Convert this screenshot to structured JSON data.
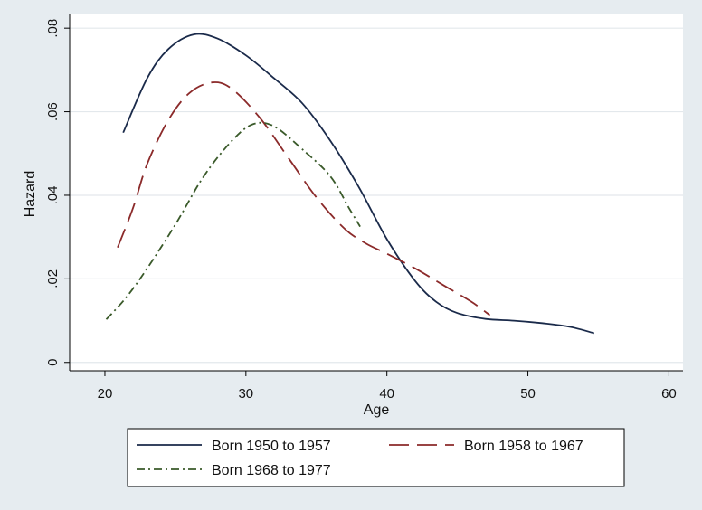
{
  "chart_data": {
    "type": "line",
    "xlabel": "Age",
    "ylabel": "Hazard",
    "xlim": [
      17.5,
      61
    ],
    "ylim": [
      -0.002,
      0.0835
    ],
    "x_ticks": [
      20,
      30,
      40,
      50,
      60
    ],
    "x_tick_labels": [
      "20",
      "30",
      "40",
      "50",
      "60"
    ],
    "y_ticks": [
      0,
      0.02,
      0.04,
      0.06,
      0.08
    ],
    "y_tick_labels": [
      "0",
      ".02",
      ".04",
      ".06",
      ".08"
    ],
    "grid": true,
    "legend": "bottom",
    "series": [
      {
        "name": "Born 1950 to 1957",
        "color": "#1a2a4a",
        "dash": "solid",
        "points": [
          [
            21.3,
            0.055
          ],
          [
            23,
            0.068
          ],
          [
            24.5,
            0.075
          ],
          [
            26.3,
            0.0785
          ],
          [
            28,
            0.0775
          ],
          [
            30,
            0.0735
          ],
          [
            32,
            0.068
          ],
          [
            34,
            0.062
          ],
          [
            36,
            0.053
          ],
          [
            38,
            0.042
          ],
          [
            40,
            0.0295
          ],
          [
            42,
            0.0195
          ],
          [
            43.5,
            0.0145
          ],
          [
            45,
            0.0118
          ],
          [
            47,
            0.0104
          ],
          [
            49,
            0.01
          ],
          [
            51,
            0.0094
          ],
          [
            53,
            0.0085
          ],
          [
            54.7,
            0.007
          ]
        ]
      },
      {
        "name": "Born 1958 to 1967",
        "color": "#8b2a2a",
        "dash": "longdash",
        "points": [
          [
            20.9,
            0.0275
          ],
          [
            22,
            0.037
          ],
          [
            23,
            0.0475
          ],
          [
            24.5,
            0.058
          ],
          [
            26,
            0.0645
          ],
          [
            27.6,
            0.067
          ],
          [
            29,
            0.0655
          ],
          [
            31,
            0.0585
          ],
          [
            33,
            0.049
          ],
          [
            35,
            0.0395
          ],
          [
            37,
            0.032
          ],
          [
            38.5,
            0.0285
          ],
          [
            40,
            0.026
          ],
          [
            42,
            0.0225
          ],
          [
            44,
            0.0185
          ],
          [
            46,
            0.0145
          ],
          [
            47.3,
            0.0113
          ]
        ]
      },
      {
        "name": "Born 1968 to 1977",
        "color": "#3a5a2a",
        "dash": "dashdot",
        "points": [
          [
            20.1,
            0.0103
          ],
          [
            21.5,
            0.0155
          ],
          [
            23,
            0.0225
          ],
          [
            25,
            0.033
          ],
          [
            27,
            0.0445
          ],
          [
            29,
            0.053
          ],
          [
            30.5,
            0.057
          ],
          [
            32,
            0.0565
          ],
          [
            34,
            0.051
          ],
          [
            36,
            0.0445
          ],
          [
            37.3,
            0.037
          ],
          [
            38.1,
            0.0325
          ]
        ]
      }
    ]
  }
}
